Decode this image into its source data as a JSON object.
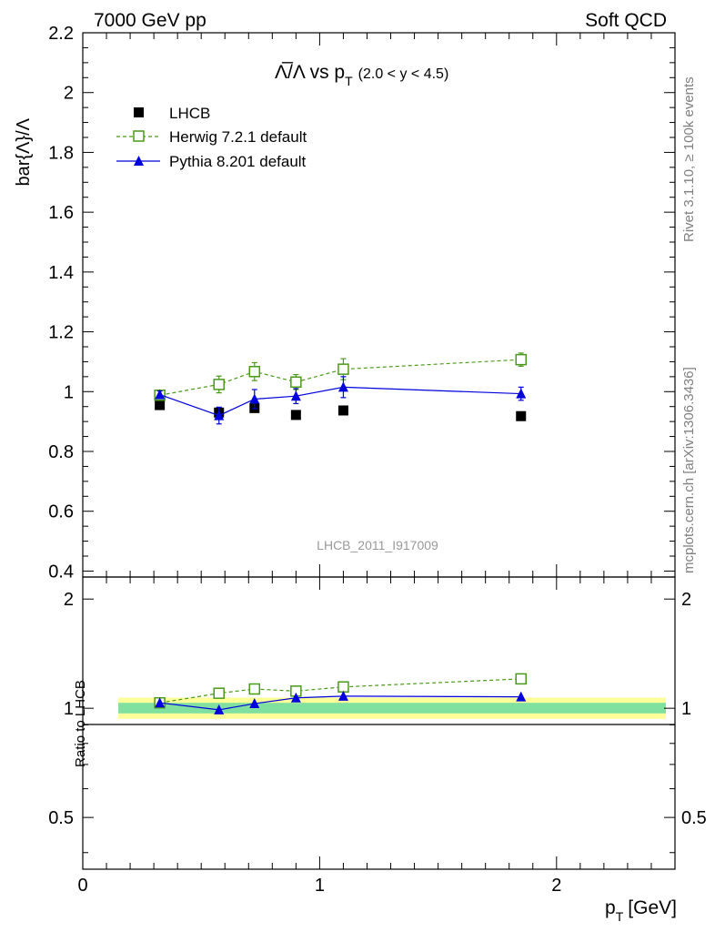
{
  "header": {
    "left": "7000 GeV pp",
    "right": "Soft QCD"
  },
  "side": {
    "rivet": "Rivet 3.1.10, ≥ 100k events",
    "mcplots": "mcplots.cern.ch [arXiv:1306.3436]"
  },
  "chart_data": [
    {
      "type": "scatter",
      "panel": "main",
      "title_main": "Λ̅/Λ vs p",
      "title_sub": "T",
      "title_range": "(2.0 < y < 4.5)",
      "ylabel": "bar{Λ}/Λ",
      "watermark": "LHCB_2011_I917009",
      "xlim": [
        0,
        2.5
      ],
      "ylim": [
        0.38,
        2.2
      ],
      "xticks": [
        0,
        1,
        2
      ],
      "yticks": [
        0.4,
        0.6,
        0.8,
        1,
        1.2,
        1.4,
        1.6,
        1.8,
        2,
        2.2
      ],
      "ytick_labels": [
        "0.4",
        "0.6",
        "0.8",
        "1",
        "1.2",
        "1.4",
        "1.6",
        "1.8",
        "2",
        "2.2"
      ],
      "legend_position": "top-left",
      "series": [
        {
          "name": "LHCB",
          "marker": "square-filled",
          "color": "#000000",
          "line": "none",
          "x": [
            0.325,
            0.575,
            0.725,
            0.9,
            1.1,
            1.85
          ],
          "y": [
            0.955,
            0.93,
            0.945,
            0.922,
            0.937,
            0.918
          ],
          "yerr": [
            0.006,
            0.006,
            0.006,
            0.006,
            0.006,
            0.008
          ]
        },
        {
          "name": "Herwig 7.2.1 default",
          "marker": "square-open",
          "color": "#4a9a1a",
          "line": "dashed",
          "x": [
            0.325,
            0.575,
            0.725,
            0.9,
            1.1,
            1.85
          ],
          "y": [
            0.988,
            1.024,
            1.067,
            1.032,
            1.075,
            1.107
          ],
          "yerr": [
            0.012,
            0.028,
            0.03,
            0.025,
            0.035,
            0.022
          ]
        },
        {
          "name": "Pythia 8.201 default",
          "marker": "triangle-filled",
          "color": "#0000dd",
          "line": "solid",
          "x": [
            0.325,
            0.575,
            0.725,
            0.9,
            1.1,
            1.85
          ],
          "y": [
            0.99,
            0.92,
            0.975,
            0.985,
            1.015,
            0.993
          ],
          "yerr": [
            0.012,
            0.028,
            0.032,
            0.025,
            0.035,
            0.022
          ]
        }
      ]
    },
    {
      "type": "scatter",
      "panel": "ratio",
      "ylabel": "Ratio to LHCB",
      "xlabel_main": "p",
      "xlabel_sub": "T",
      "xlabel_unit": "[GeV]",
      "xlim": [
        0,
        2.5
      ],
      "ylim": [
        0.36,
        2.3
      ],
      "log_y": true,
      "xticks": [
        0,
        1,
        2
      ],
      "xtick_labels": [
        "0",
        "1",
        "2"
      ],
      "yticks": [
        0.5,
        1,
        2
      ],
      "ytick_labels": [
        "0.5",
        "1",
        "2"
      ],
      "bands": {
        "x_range": [
          0.15,
          2.55
        ],
        "inner": {
          "color": "#7fe0a0",
          "low": 0.968,
          "high": 1.035
        },
        "outer": {
          "color": "#ffff99",
          "low": 0.935,
          "high": 1.07
        }
      },
      "series": [
        {
          "name": "Herwig 7.2.1 default",
          "marker": "square-open",
          "color": "#4a9a1a",
          "line": "dashed",
          "x": [
            0.325,
            0.575,
            0.725,
            0.9,
            1.1,
            1.85
          ],
          "y": [
            1.035,
            1.1,
            1.13,
            1.115,
            1.145,
            1.205
          ]
        },
        {
          "name": "Pythia 8.201 default",
          "marker": "triangle-filled",
          "color": "#0000dd",
          "line": "solid",
          "x": [
            0.325,
            0.575,
            0.725,
            0.9,
            1.1,
            1.85
          ],
          "y": [
            1.035,
            0.99,
            1.03,
            1.068,
            1.08,
            1.075
          ]
        }
      ]
    }
  ]
}
